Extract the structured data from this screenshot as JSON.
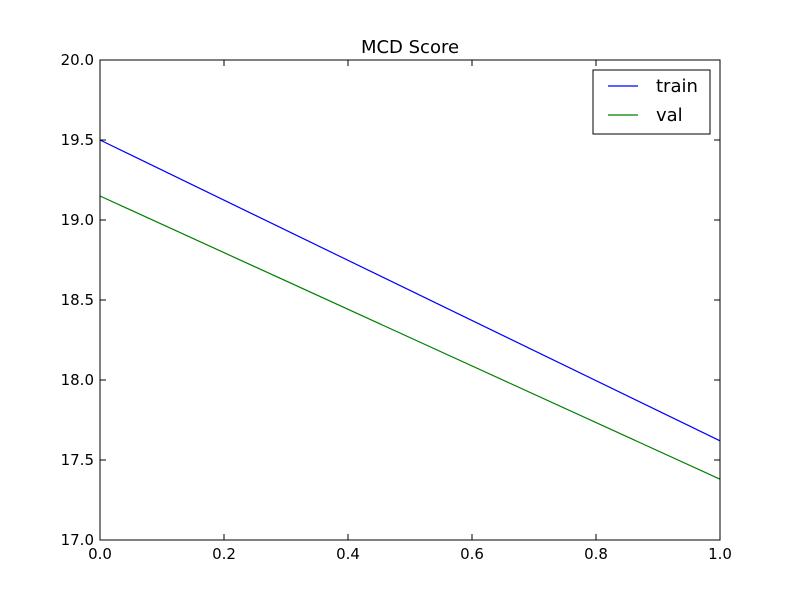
{
  "chart_data": {
    "type": "line",
    "title": "MCD Score",
    "xlabel": "",
    "ylabel": "",
    "x": [
      0.0,
      1.0
    ],
    "series": [
      {
        "name": "train",
        "color": "#0000ff",
        "values": [
          19.5,
          17.62
        ]
      },
      {
        "name": "val",
        "color": "#008000",
        "values": [
          19.15,
          17.38
        ]
      }
    ],
    "xlim": [
      0.0,
      1.0
    ],
    "ylim": [
      17.0,
      20.0
    ],
    "x_ticks": [
      "0.0",
      "0.2",
      "0.4",
      "0.6",
      "0.8",
      "1.0"
    ],
    "y_ticks": [
      "17.0",
      "17.5",
      "18.0",
      "18.5",
      "19.0",
      "19.5",
      "20.0"
    ],
    "grid": false,
    "legend_position": "top-right"
  }
}
